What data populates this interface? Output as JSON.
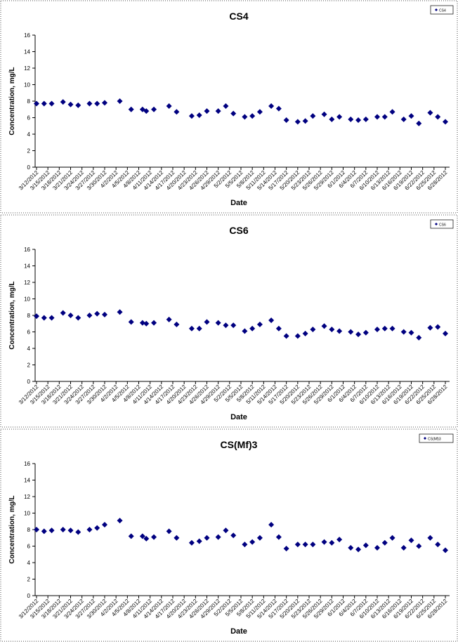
{
  "chart_data": [
    {
      "type": "scatter",
      "title": "CS4",
      "xlabel": "Date",
      "ylabel": "Concentration, mg/L",
      "color": "#000080",
      "legend": "top-right",
      "ylim": [
        0,
        16
      ],
      "yticks": [
        0,
        2,
        4,
        6,
        8,
        10,
        12,
        14,
        16
      ],
      "xticks": [
        "3/12/2012",
        "3/15/2012",
        "3/18/2012",
        "3/21/2012",
        "3/24/2012",
        "3/27/2012",
        "3/30/2012",
        "4/2/2012",
        "4/5/2012",
        "4/8/2012",
        "4/11/2012",
        "4/14/2012",
        "4/17/2012",
        "4/20/2012",
        "4/23/2012",
        "4/26/2012",
        "4/29/2012",
        "5/2/2012",
        "5/5/2012",
        "5/8/2012",
        "5/11/2012",
        "5/14/2012",
        "5/17/2012",
        "5/20/2012",
        "5/23/2012",
        "5/26/2012",
        "5/29/2012",
        "6/1/2012",
        "6/4/2012",
        "6/7/2012",
        "6/10/2012",
        "6/13/2012",
        "6/16/2012",
        "6/19/2012",
        "6/22/2012",
        "6/25/2012",
        "6/28/2012"
      ],
      "series": [
        {
          "name": "CS4",
          "color": "#000080",
          "x": [
            "3/12/2012",
            "3/14/2012",
            "3/16/2012",
            "3/19/2012",
            "3/21/2012",
            "3/23/2012",
            "3/26/2012",
            "3/28/2012",
            "3/30/2012",
            "4/3/2012",
            "4/6/2012",
            "4/9/2012",
            "4/10/2012",
            "4/12/2012",
            "4/16/2012",
            "4/18/2012",
            "4/22/2012",
            "4/24/2012",
            "4/26/2012",
            "4/29/2012",
            "5/1/2012",
            "5/3/2012",
            "5/6/2012",
            "5/8/2012",
            "5/10/2012",
            "5/13/2012",
            "5/15/2012",
            "5/17/2012",
            "5/20/2012",
            "5/22/2012",
            "5/24/2012",
            "5/27/2012",
            "5/29/2012",
            "5/31/2012",
            "6/3/2012",
            "6/5/2012",
            "6/7/2012",
            "6/10/2012",
            "6/12/2012",
            "6/14/2012",
            "6/17/2012",
            "6/19/2012",
            "6/21/2012",
            "6/24/2012",
            "6/26/2012",
            "6/28/2012"
          ],
          "values": [
            7.7,
            7.7,
            7.7,
            7.9,
            7.6,
            7.5,
            7.7,
            7.7,
            7.8,
            8.0,
            7.0,
            7.0,
            6.8,
            7.0,
            7.4,
            6.7,
            6.2,
            6.3,
            6.8,
            6.8,
            7.4,
            6.5,
            6.1,
            6.2,
            6.7,
            7.4,
            7.1,
            5.7,
            5.5,
            5.6,
            6.2,
            6.4,
            5.8,
            6.1,
            5.8,
            5.7,
            5.8,
            6.1,
            6.1,
            6.7,
            5.8,
            6.2,
            5.3,
            6.6,
            6.1,
            5.5
          ]
        }
      ]
    },
    {
      "type": "scatter",
      "title": "CS6",
      "xlabel": "Date",
      "ylabel": "Concentration, mg/L",
      "color": "#000080",
      "legend": "top-right",
      "ylim": [
        0,
        16
      ],
      "yticks": [
        0,
        2,
        4,
        6,
        8,
        10,
        12,
        14,
        16
      ],
      "xticks": [
        "3/12/2012",
        "3/15/2012",
        "3/18/2012",
        "3/21/2012",
        "3/24/2012",
        "3/27/2012",
        "3/30/2012",
        "4/2/2012",
        "4/5/2012",
        "4/8/2012",
        "4/11/2012",
        "4/14/2012",
        "4/17/2012",
        "4/20/2012",
        "4/23/2012",
        "4/26/2012",
        "4/29/2012",
        "5/2/2012",
        "5/5/2012",
        "5/8/2012",
        "5/11/2012",
        "5/14/2012",
        "5/17/2012",
        "5/20/2012",
        "5/23/2012",
        "5/26/2012",
        "5/29/2012",
        "6/1/2012",
        "6/4/2012",
        "6/7/2012",
        "6/10/2012",
        "6/13/2012",
        "6/16/2012",
        "6/19/2012",
        "6/22/2012",
        "6/25/2012",
        "6/28/2012"
      ],
      "series": [
        {
          "name": "CS6",
          "color": "#000080",
          "x": [
            "3/12/2012",
            "3/14/2012",
            "3/16/2012",
            "3/19/2012",
            "3/21/2012",
            "3/23/2012",
            "3/26/2012",
            "3/28/2012",
            "3/30/2012",
            "4/3/2012",
            "4/6/2012",
            "4/9/2012",
            "4/10/2012",
            "4/12/2012",
            "4/16/2012",
            "4/18/2012",
            "4/22/2012",
            "4/24/2012",
            "4/26/2012",
            "4/29/2012",
            "5/1/2012",
            "5/3/2012",
            "5/6/2012",
            "5/8/2012",
            "5/10/2012",
            "5/13/2012",
            "5/15/2012",
            "5/17/2012",
            "5/20/2012",
            "5/22/2012",
            "5/24/2012",
            "5/27/2012",
            "5/29/2012",
            "5/31/2012",
            "6/3/2012",
            "6/5/2012",
            "6/7/2012",
            "6/10/2012",
            "6/12/2012",
            "6/14/2012",
            "6/17/2012",
            "6/19/2012",
            "6/21/2012",
            "6/24/2012",
            "6/26/2012",
            "6/28/2012"
          ],
          "values": [
            7.9,
            7.7,
            7.7,
            8.3,
            8.0,
            7.7,
            8.0,
            8.2,
            8.1,
            8.4,
            7.2,
            7.1,
            7.0,
            7.1,
            7.5,
            6.9,
            6.4,
            6.4,
            7.2,
            7.1,
            6.8,
            6.8,
            6.1,
            6.4,
            6.9,
            7.4,
            6.4,
            5.5,
            5.5,
            5.8,
            6.3,
            6.7,
            6.3,
            6.1,
            6.0,
            5.7,
            5.9,
            6.3,
            6.4,
            6.4,
            6.0,
            5.9,
            5.3,
            6.5,
            6.6,
            5.8
          ]
        }
      ]
    },
    {
      "type": "scatter",
      "title": "CS(Mf)3",
      "xlabel": "Date",
      "ylabel": "Concentration, mg/L",
      "color": "#000080",
      "legend": "top-right",
      "ylim": [
        0,
        16
      ],
      "yticks": [
        0,
        2,
        4,
        6,
        8,
        10,
        12,
        14,
        16
      ],
      "xticks": [
        "3/12/2012",
        "3/15/2012",
        "3/18/2012",
        "3/21/2012",
        "3/24/2012",
        "3/27/2012",
        "3/30/2012",
        "4/2/2012",
        "4/5/2012",
        "4/8/2012",
        "4/11/2012",
        "4/14/2012",
        "4/17/2012",
        "4/20/2012",
        "4/23/2012",
        "4/26/2012",
        "4/29/2012",
        "5/2/2012",
        "5/5/2012",
        "5/8/2012",
        "5/11/2012",
        "5/14/2012",
        "5/17/2012",
        "5/20/2012",
        "5/23/2012",
        "5/26/2012",
        "5/29/2012",
        "6/1/2012",
        "6/4/2012",
        "6/7/2012",
        "6/10/2012",
        "6/13/2012",
        "6/16/2012",
        "6/19/2012",
        "6/22/2012",
        "6/25/2012",
        "6/28/2012"
      ],
      "series": [
        {
          "name": "CS(Mf)3",
          "color": "#000080",
          "x": [
            "3/12/2012",
            "3/14/2012",
            "3/16/2012",
            "3/19/2012",
            "3/21/2012",
            "3/23/2012",
            "3/26/2012",
            "3/28/2012",
            "3/30/2012",
            "4/3/2012",
            "4/6/2012",
            "4/9/2012",
            "4/10/2012",
            "4/12/2012",
            "4/16/2012",
            "4/18/2012",
            "4/22/2012",
            "4/24/2012",
            "4/26/2012",
            "4/29/2012",
            "5/1/2012",
            "5/3/2012",
            "5/6/2012",
            "5/8/2012",
            "5/10/2012",
            "5/13/2012",
            "5/15/2012",
            "5/17/2012",
            "5/20/2012",
            "5/22/2012",
            "5/24/2012",
            "5/27/2012",
            "5/29/2012",
            "5/31/2012",
            "6/3/2012",
            "6/5/2012",
            "6/7/2012",
            "6/10/2012",
            "6/12/2012",
            "6/14/2012",
            "6/17/2012",
            "6/19/2012",
            "6/21/2012",
            "6/24/2012",
            "6/26/2012",
            "6/28/2012"
          ],
          "values": [
            8.0,
            7.8,
            7.9,
            8.0,
            7.9,
            7.7,
            8.0,
            8.2,
            8.6,
            9.1,
            7.2,
            7.2,
            6.9,
            7.1,
            7.8,
            7.0,
            6.4,
            6.6,
            7.0,
            7.1,
            7.9,
            7.3,
            6.2,
            6.5,
            7.0,
            8.6,
            7.1,
            5.7,
            6.2,
            6.2,
            6.2,
            6.5,
            6.4,
            6.8,
            5.8,
            5.6,
            6.1,
            5.8,
            6.4,
            7.0,
            5.8,
            6.7,
            6.0,
            7.0,
            6.2,
            5.5
          ]
        }
      ]
    }
  ]
}
